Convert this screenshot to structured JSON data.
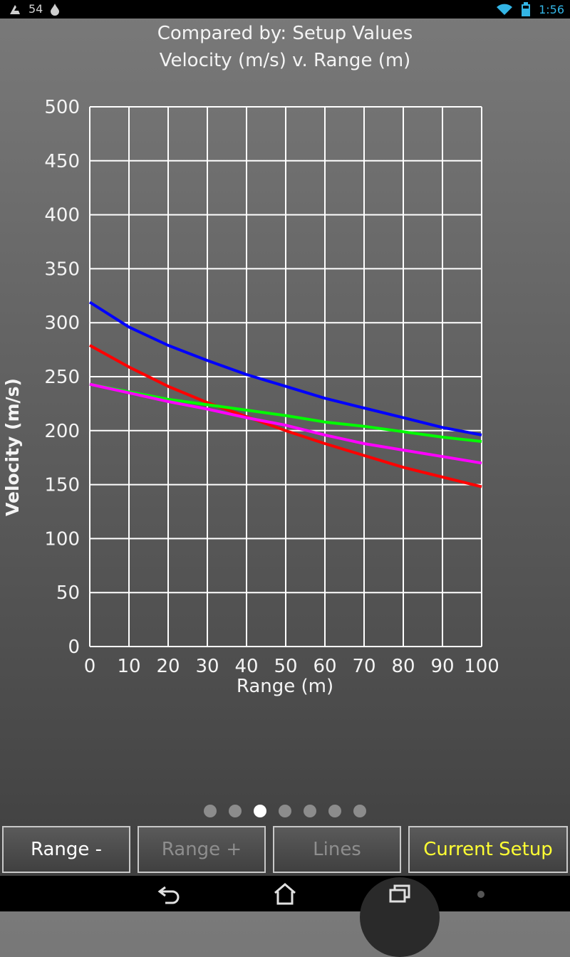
{
  "status_bar": {
    "left_number": "54",
    "time": "1:56"
  },
  "chart_data": {
    "type": "line",
    "title": "Compared by: Setup Values",
    "subtitle": "Velocity (m/s) v. Range (m)",
    "xlabel": "Range (m)",
    "ylabel": "Velocity (m/s)",
    "xlim": [
      0,
      100
    ],
    "ylim": [
      0,
      500
    ],
    "grid": true,
    "x_ticks": [
      0,
      10,
      20,
      30,
      40,
      50,
      60,
      70,
      80,
      90,
      100
    ],
    "y_ticks": [
      0,
      50,
      100,
      150,
      200,
      250,
      300,
      350,
      400,
      450,
      500
    ],
    "x": [
      0,
      10,
      20,
      30,
      40,
      50,
      60,
      70,
      80,
      90,
      100
    ],
    "series": [
      {
        "color": "#0000ff",
        "values": [
          319,
          296,
          279,
          265,
          252,
          241,
          230,
          221,
          212,
          203,
          196
        ]
      },
      {
        "color": "#ff0000",
        "values": [
          279,
          259,
          241,
          226,
          213,
          200,
          188,
          177,
          166,
          157,
          148
        ]
      },
      {
        "color": "#00ff00",
        "values": [
          243,
          236,
          229,
          224,
          219,
          214,
          208,
          204,
          199,
          194,
          190
        ]
      },
      {
        "color": "#ff00ff",
        "values": [
          243,
          235,
          227,
          220,
          212,
          205,
          196,
          188,
          182,
          176,
          170
        ]
      }
    ]
  },
  "pager": {
    "count": 7,
    "active_index": 2
  },
  "buttons": [
    {
      "label": "Range -",
      "state": "enabled"
    },
    {
      "label": "Range +",
      "state": "disabled"
    },
    {
      "label": "Lines",
      "state": "disabled"
    },
    {
      "label": "Current Setup",
      "state": "highlight"
    }
  ],
  "nav": [
    "back-icon",
    "home-icon",
    "recent-apps-icon"
  ]
}
